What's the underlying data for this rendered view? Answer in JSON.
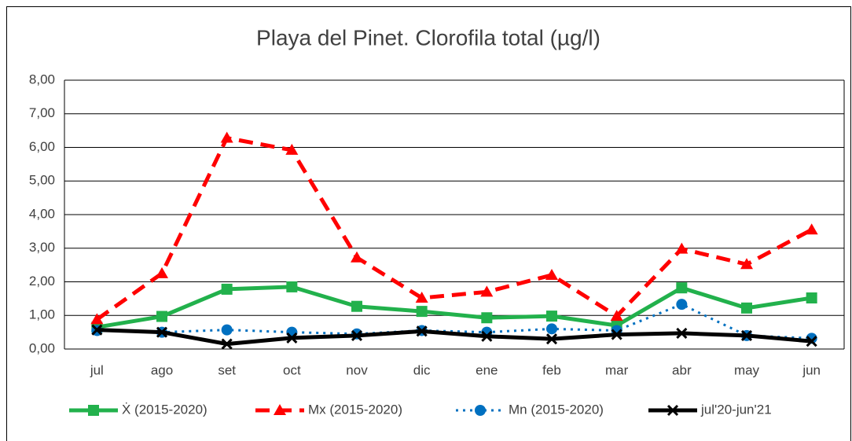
{
  "chart_data": {
    "type": "line",
    "title": "Playa del Pinet. Clorofila total (µg/l)",
    "categories": [
      "jul",
      "ago",
      "set",
      "oct",
      "nov",
      "dic",
      "ene",
      "feb",
      "mar",
      "abr",
      "may",
      "jun"
    ],
    "series": [
      {
        "name": "Ẋ (2015-2020)",
        "color": "#22b14c",
        "dash": "solid",
        "marker": "square",
        "values": [
          0.65,
          0.97,
          1.78,
          1.85,
          1.27,
          1.12,
          0.93,
          0.98,
          0.7,
          1.82,
          1.22,
          1.52
        ]
      },
      {
        "name": "Mx (2015-2020)",
        "color": "#ff0000",
        "dash": "dashed",
        "marker": "triangle",
        "values": [
          0.88,
          2.25,
          6.28,
          5.92,
          2.72,
          1.52,
          1.7,
          2.2,
          0.98,
          2.98,
          2.52,
          3.55
        ]
      },
      {
        "name": "Mn (2015-2020)",
        "color": "#0070c0",
        "dash": "dotted",
        "marker": "circle",
        "values": [
          0.55,
          0.5,
          0.57,
          0.5,
          0.45,
          0.55,
          0.5,
          0.6,
          0.55,
          1.33,
          0.4,
          0.32
        ]
      },
      {
        "name": "jul'20-jun'21",
        "color": "#000000",
        "dash": "solid",
        "marker": "x",
        "values": [
          0.57,
          0.5,
          0.15,
          0.33,
          0.4,
          0.53,
          0.38,
          0.3,
          0.43,
          0.47,
          0.4,
          0.23
        ]
      }
    ],
    "ylim": [
      0,
      8
    ],
    "yticks": [
      {
        "value": 0,
        "label": "0,00"
      },
      {
        "value": 1,
        "label": "1,00"
      },
      {
        "value": 2,
        "label": "2,00"
      },
      {
        "value": 3,
        "label": "3,00"
      },
      {
        "value": 4,
        "label": "4,00"
      },
      {
        "value": 5,
        "label": "5,00"
      },
      {
        "value": 6,
        "label": "6,00"
      },
      {
        "value": 7,
        "label": "7,00"
      },
      {
        "value": 8,
        "label": "8,00"
      }
    ],
    "grid": true,
    "legend": "bottom"
  }
}
